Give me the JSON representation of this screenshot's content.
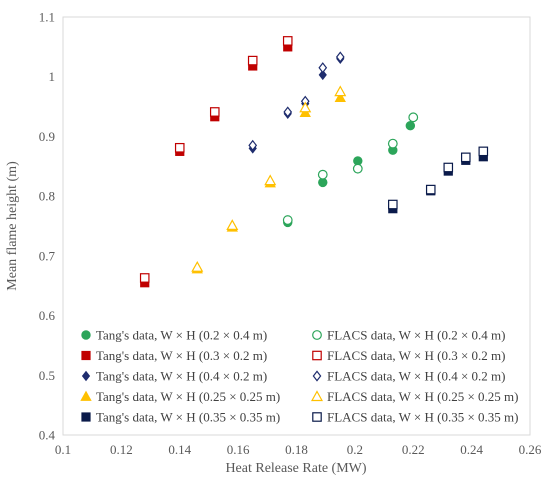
{
  "chart_data": {
    "type": "scatter",
    "xlabel": "Heat Release Rate (MW)",
    "ylabel": "Mean flame height (m)",
    "xlim": [
      0.1,
      0.26
    ],
    "ylim": [
      0.4,
      1.1
    ],
    "xticks": [
      "0.1",
      "0.12",
      "0.14",
      "0.16",
      "0.18",
      "0.2",
      "0.22",
      "0.24",
      "0.26"
    ],
    "yticks": [
      "0.4",
      "0.5",
      "0.6",
      "0.7",
      "0.8",
      "0.9",
      "1",
      "1.1"
    ],
    "grid": false,
    "legend_position": "bottom, inside plot, two columns",
    "series": [
      {
        "name": "Tang's data, W × H (0.2 × 0.4 m)",
        "marker": "circle",
        "filled": true,
        "color": "#2ca55a",
        "x": [
          0.177,
          0.189,
          0.201,
          0.213,
          0.219
        ],
        "y": [
          0.756,
          0.823,
          0.859,
          0.877,
          0.918
        ]
      },
      {
        "name": "Tang's data, W × H (0.3 × 0.2 m)",
        "marker": "square",
        "filled": true,
        "color": "#c00000",
        "x": [
          0.128,
          0.14,
          0.152,
          0.165,
          0.177
        ],
        "y": [
          0.655,
          0.875,
          0.933,
          1.018,
          1.05
        ]
      },
      {
        "name": "Tang's data, W × H (0.4 × 0.2 m)",
        "marker": "diamond",
        "filled": true,
        "color": "#1f2d6e",
        "x": [
          0.165,
          0.177,
          0.183,
          0.189,
          0.195
        ],
        "y": [
          0.88,
          0.938,
          0.955,
          1.003,
          1.03
        ]
      },
      {
        "name": "Tang's data, W × H (0.25 × 0.25 m)",
        "marker": "triangle",
        "filled": true,
        "color": "#ffc000",
        "x": [
          0.146,
          0.158,
          0.171,
          0.183,
          0.195
        ],
        "y": [
          0.678,
          0.748,
          0.822,
          0.94,
          0.965
        ]
      },
      {
        "name": "Tang's data, W × H (0.35 × 0.35 m)",
        "marker": "square",
        "filled": true,
        "color": "#0a1a4a",
        "x": [
          0.213,
          0.226,
          0.232,
          0.238,
          0.244
        ],
        "y": [
          0.779,
          0.809,
          0.842,
          0.86,
          0.866
        ]
      },
      {
        "name": "FLACS data, W × H (0.2 × 0.4 m)",
        "marker": "circle",
        "filled": false,
        "color": "#2ca55a",
        "x": [
          0.177,
          0.189,
          0.201,
          0.213,
          0.22
        ],
        "y": [
          0.76,
          0.836,
          0.846,
          0.888,
          0.932
        ]
      },
      {
        "name": "FLACS data, W × H (0.3 × 0.2 m)",
        "marker": "square",
        "filled": false,
        "color": "#c00000",
        "x": [
          0.128,
          0.14,
          0.152,
          0.165,
          0.177
        ],
        "y": [
          0.663,
          0.881,
          0.941,
          1.027,
          1.06
        ]
      },
      {
        "name": "FLACS data, W × H (0.4 × 0.2 m)",
        "marker": "diamond",
        "filled": false,
        "color": "#1f2d6e",
        "x": [
          0.165,
          0.177,
          0.183,
          0.189,
          0.195
        ],
        "y": [
          0.885,
          0.941,
          0.959,
          1.015,
          1.033
        ]
      },
      {
        "name": "FLACS data, W × H (0.25 × 0.25 m)",
        "marker": "triangle",
        "filled": false,
        "color": "#ffc000",
        "x": [
          0.146,
          0.158,
          0.171,
          0.183,
          0.195
        ],
        "y": [
          0.681,
          0.751,
          0.826,
          0.948,
          0.975
        ]
      },
      {
        "name": "FLACS data, W × H (0.35 × 0.35 m)",
        "marker": "square",
        "filled": false,
        "color": "#0a1a4a",
        "x": [
          0.213,
          0.226,
          0.232,
          0.238,
          0.244
        ],
        "y": [
          0.786,
          0.811,
          0.848,
          0.865,
          0.875
        ]
      }
    ]
  }
}
